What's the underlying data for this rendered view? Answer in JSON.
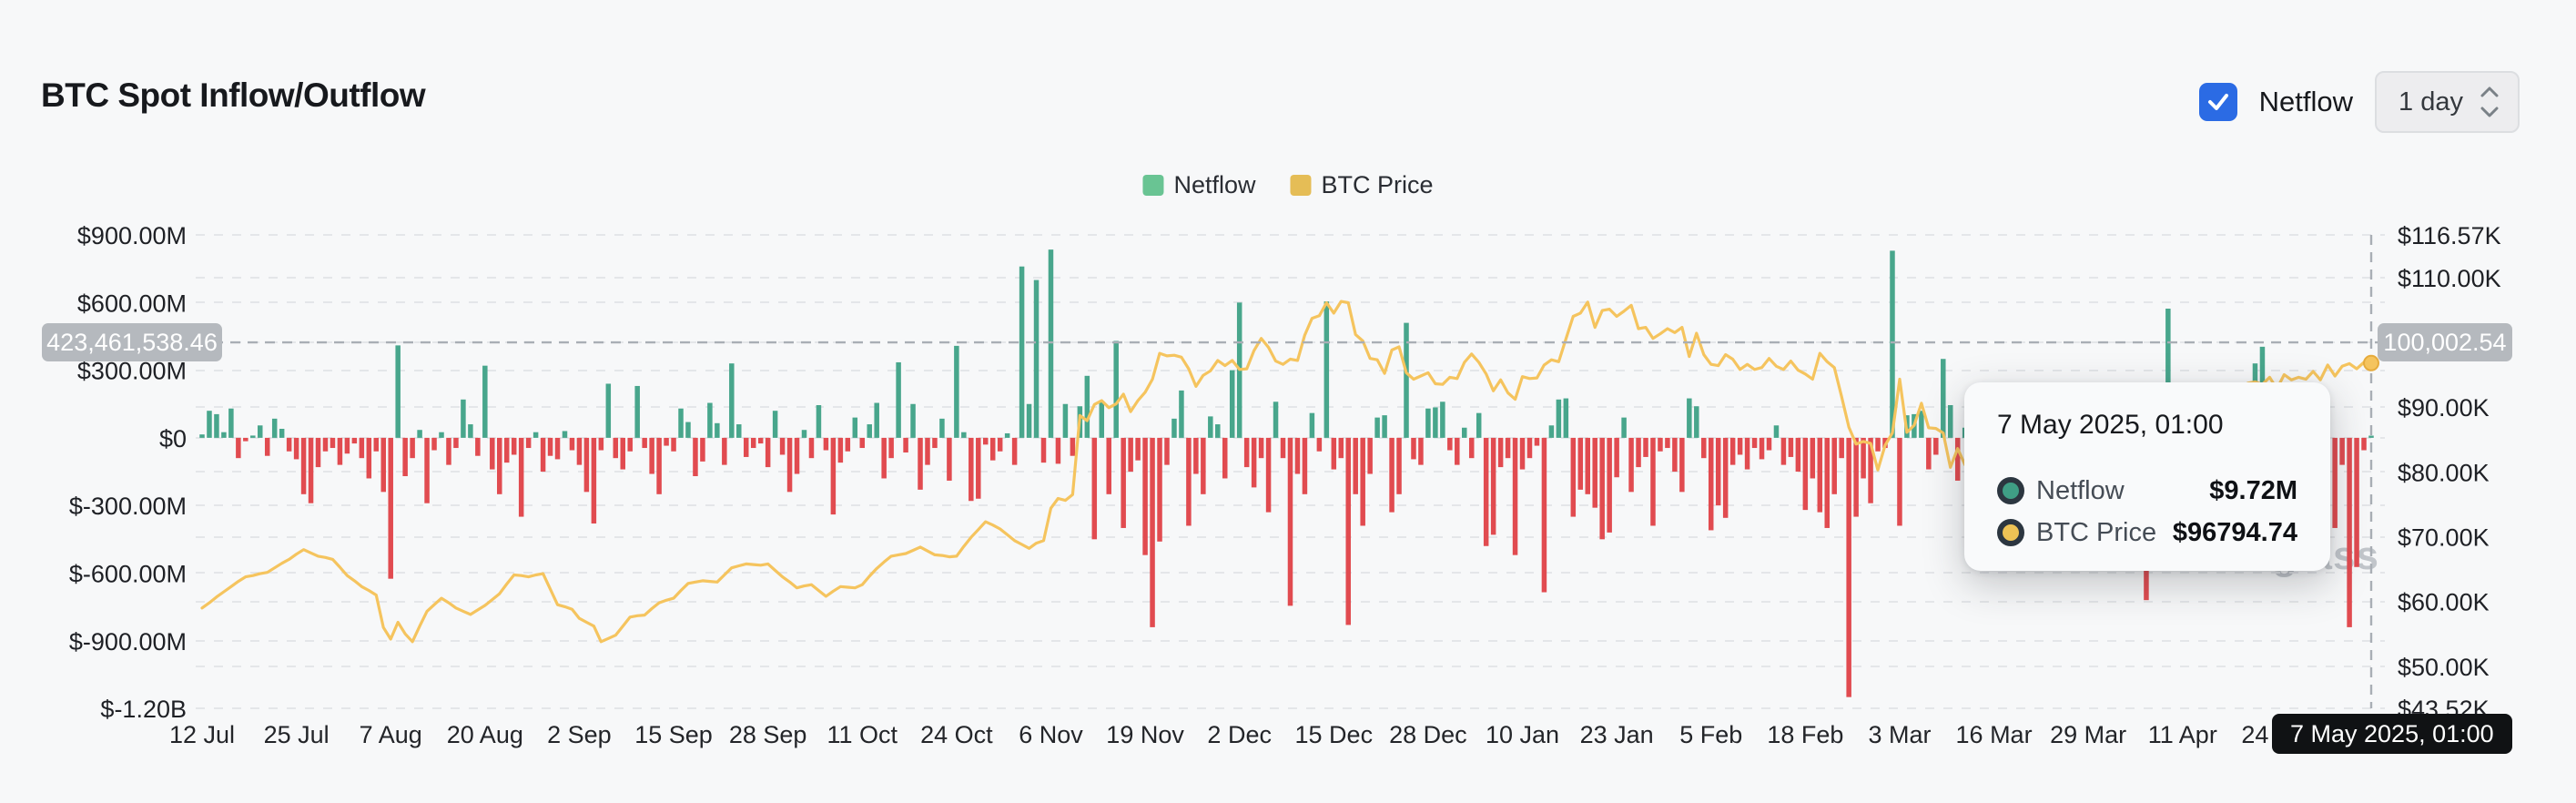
{
  "header": {
    "title": "BTC Spot Inflow/Outflow",
    "netflow_toggle_label": "Netflow",
    "interval_selector": "1 day"
  },
  "legend": [
    {
      "label": "Netflow",
      "color": "#69c493"
    },
    {
      "label": "BTC Price",
      "color": "#e5bd56"
    }
  ],
  "crosshair": {
    "left_value_badge": "423,461,538.46",
    "right_value_badge": "100,002.54",
    "date_badge": "7 May 2025, 01:00"
  },
  "tooltip": {
    "title": "7 May 2025, 01:00",
    "rows": [
      {
        "label": "Netflow",
        "value": "$9.72M",
        "color": "#3f9e85"
      },
      {
        "label": "BTC Price",
        "value": "$96794.74",
        "color": "#edc255"
      }
    ]
  },
  "watermark": "coinglass",
  "chart_data": {
    "type": "bar+line",
    "title": "BTC Spot Inflow/Outflow",
    "x_tick_labels": [
      "12 Jul",
      "25 Jul",
      "7 Aug",
      "20 Aug",
      "2 Sep",
      "15 Sep",
      "28 Sep",
      "11 Oct",
      "24 Oct",
      "6 Nov",
      "19 Nov",
      "2 Dec",
      "15 Dec",
      "28 Dec",
      "10 Jan",
      "23 Jan",
      "5 Feb",
      "18 Feb",
      "3 Mar",
      "16 Mar",
      "29 Mar",
      "11 Apr",
      "24 Apr"
    ],
    "x_tick_indices": [
      0,
      13,
      26,
      39,
      52,
      65,
      78,
      91,
      104,
      117,
      130,
      143,
      156,
      169,
      182,
      195,
      208,
      221,
      234,
      247,
      260,
      273,
      286
    ],
    "left_axis": {
      "tick_labels": [
        "$900.00M",
        "$600.00M",
        "$300.00M",
        "$0",
        "$-300.00M",
        "$-600.00M",
        "$-900.00M",
        "$-1.20B"
      ],
      "tick_values": [
        900,
        600,
        300,
        0,
        -300,
        -600,
        -900,
        -1200
      ],
      "range": [
        -1200,
        900
      ],
      "unit": "USD millions"
    },
    "right_axis": {
      "tick_labels": [
        "$116.57K",
        "$110.00K",
        "$100.00K",
        "$90.00K",
        "$80.00K",
        "$70.00K",
        "$60.00K",
        "$50.00K",
        "$43.52K"
      ],
      "tick_values": [
        116.57,
        110,
        100,
        90,
        80,
        70,
        60,
        50,
        43.52
      ],
      "range": [
        43.52,
        116.57
      ],
      "unit": "USD thousands"
    },
    "crosshair": {
      "hover_index": 299,
      "netflow_axis_value_m": 423.461538,
      "price_axis_value_k": 100.00254,
      "hover_netflow": "$9.72M",
      "hover_price": "$96794.74"
    },
    "grid": "dashed-horizontal",
    "legend_position": "top-center",
    "series": [
      {
        "name": "Netflow",
        "type": "bar",
        "axis": "left",
        "unit": "USD millions",
        "color_positive": "#48a68c",
        "color_negative": "#e14b50",
        "values": [
          15,
          120,
          105,
          25,
          130,
          -90,
          -15,
          10,
          55,
          -80,
          85,
          40,
          -60,
          -95,
          -250,
          -290,
          -130,
          -60,
          -45,
          -120,
          -70,
          -25,
          -90,
          -180,
          -60,
          -240,
          -625,
          410,
          -170,
          -90,
          35,
          -290,
          -55,
          25,
          -120,
          -45,
          170,
          60,
          -80,
          320,
          -140,
          -250,
          -110,
          -75,
          -350,
          -45,
          25,
          -150,
          -80,
          -95,
          30,
          -55,
          -120,
          -240,
          -380,
          -55,
          240,
          -90,
          -140,
          -60,
          230,
          -45,
          -160,
          -250,
          -35,
          -60,
          130,
          70,
          -170,
          -105,
          155,
          65,
          -120,
          330,
          60,
          -85,
          -45,
          -25,
          -130,
          120,
          -75,
          -240,
          -160,
          35,
          -90,
          145,
          -55,
          -340,
          -110,
          -60,
          90,
          -45,
          60,
          155,
          -180,
          -90,
          335,
          -65,
          150,
          -230,
          -120,
          -45,
          85,
          -190,
          408,
          25,
          -280,
          -270,
          -30,
          -100,
          -60,
          20,
          -120,
          760,
          150,
          700,
          -110,
          835,
          -115,
          150,
          -80,
          140,
          275,
          -450,
          160,
          -250,
          430,
          -400,
          -150,
          -100,
          -520,
          -840,
          -460,
          -120,
          85,
          210,
          -390,
          -160,
          -250,
          95,
          60,
          -180,
          300,
          600,
          -130,
          -220,
          -90,
          -330,
          160,
          -90,
          -745,
          -160,
          -250,
          110,
          -60,
          605,
          -140,
          -90,
          -830,
          -250,
          -390,
          -160,
          90,
          100,
          -330,
          -250,
          510,
          -95,
          -120,
          130,
          135,
          160,
          -55,
          -120,
          45,
          -90,
          110,
          -480,
          -430,
          -130,
          -90,
          -520,
          -140,
          -90,
          -35,
          -685,
          55,
          170,
          175,
          -350,
          -230,
          -250,
          -310,
          -450,
          -420,
          -175,
          90,
          -240,
          -130,
          -85,
          -390,
          -60,
          -45,
          -150,
          -240,
          175,
          140,
          -90,
          -410,
          -300,
          -355,
          -120,
          -75,
          -140,
          -45,
          -95,
          -55,
          55,
          -120,
          -85,
          -150,
          -320,
          -180,
          -330,
          -400,
          -250,
          -90,
          -1150,
          -350,
          -180,
          -290,
          -60,
          -45,
          830,
          -390,
          100,
          105,
          120,
          -140,
          -75,
          350,
          145,
          -190,
          45,
          -75,
          -35,
          -90,
          60,
          -120,
          -45,
          85,
          -150,
          -60,
          30,
          -95,
          120,
          -40,
          -80,
          25,
          -55,
          -90,
          -45,
          -150,
          -75,
          -280,
          -120,
          -60,
          -90,
          -720,
          -150,
          -45,
          573,
          -85,
          -55,
          35,
          -120,
          -75,
          150,
          -45,
          -90,
          60,
          -30,
          85,
          330,
          404,
          -60,
          -120,
          -180,
          -90,
          -45,
          -160,
          -90,
          -240,
          8,
          -400,
          -120,
          -840,
          -573,
          -55,
          9.72
        ]
      },
      {
        "name": "BTC Price",
        "type": "line",
        "axis": "right",
        "unit": "USD thousands",
        "color": "#f5c45e",
        "values": [
          59.0,
          59.8,
          60.7,
          61.5,
          62.3,
          63.1,
          63.8,
          64.0,
          64.3,
          64.5,
          65.2,
          65.9,
          66.5,
          67.3,
          68.0,
          67.5,
          67.0,
          66.8,
          66.5,
          65.3,
          64.0,
          63.2,
          62.3,
          61.7,
          61.0,
          56.0,
          54.2,
          56.8,
          55.0,
          53.8,
          56.2,
          58.5,
          59.5,
          60.5,
          59.8,
          59.0,
          58.5,
          58.0,
          58.7,
          59.4,
          60.3,
          61.2,
          62.7,
          64.1,
          64.0,
          63.8,
          64.1,
          64.3,
          61.9,
          59.5,
          59.2,
          58.8,
          57.4,
          56.8,
          56.2,
          53.8,
          54.3,
          54.8,
          56.2,
          57.6,
          57.8,
          57.9,
          58.9,
          59.8,
          60.2,
          60.5,
          61.7,
          62.8,
          63.0,
          63.2,
          63.1,
          63.0,
          64.1,
          65.2,
          65.5,
          65.8,
          65.7,
          65.6,
          65.8,
          64.8,
          63.8,
          63.0,
          62.1,
          62.4,
          62.6,
          61.7,
          60.8,
          61.6,
          62.3,
          62.2,
          62.1,
          62.6,
          63.9,
          65.1,
          66.1,
          67.0,
          67.2,
          67.4,
          67.9,
          68.4,
          67.8,
          67.2,
          67.1,
          66.9,
          67.0,
          68.5,
          69.9,
          71.1,
          72.3,
          71.8,
          71.2,
          70.3,
          69.4,
          68.8,
          68.2,
          69.0,
          69.4,
          74.4,
          75.9,
          75.6,
          76.5,
          88.7,
          87.9,
          90.4,
          91.0,
          89.9,
          90.5,
          92.0,
          89.3,
          91.0,
          92.3,
          94.3,
          98.3,
          97.9,
          98.0,
          97.7,
          95.9,
          93.2,
          94.9,
          95.6,
          97.2,
          96.4,
          97.2,
          95.8,
          95.9,
          98.7,
          100.6,
          99.2,
          97.1,
          96.6,
          97.4,
          97.2,
          101.1,
          103.7,
          104.1,
          106.1,
          104.5,
          106.3,
          106.1,
          101.2,
          100.2,
          97.5,
          97.3,
          95.2,
          98.8,
          99.3,
          95.3,
          94.3,
          94.8,
          95.3,
          93.6,
          93.5,
          94.6,
          94.4,
          96.9,
          98.2,
          96.9,
          95.1,
          92.5,
          94.2,
          92.2,
          91.2,
          94.7,
          94.4,
          94.5,
          96.5,
          97.3,
          97.0,
          100.5,
          104.0,
          104.5,
          106.2,
          102.3,
          104.9,
          105.1,
          104.0,
          104.8,
          105.7,
          102.1,
          102.3,
          100.6,
          101.3,
          102.1,
          101.5,
          102.3,
          97.8,
          101.4,
          98.1,
          96.6,
          96.4,
          98.1,
          97.4,
          95.8,
          96.6,
          95.8,
          96.1,
          97.5,
          96.3,
          95.8,
          97.1,
          95.7,
          95.1,
          94.3,
          98.3,
          97.0,
          96.1,
          91.6,
          86.9,
          84.3,
          84.7,
          84.4,
          80.3,
          84.1,
          86.0,
          94.3,
          86.1,
          87.2,
          90.6,
          86.8,
          86.7,
          86.0,
          80.7,
          83.6,
          81.1,
          83.9,
          84.0,
          84.4,
          82.6,
          84.0,
          86.8,
          84.2,
          84.0,
          87.5,
          87.2,
          86.7,
          87.1,
          85.8,
          87.3,
          86.9,
          87.5,
          82.4,
          83.7,
          82.5,
          82.4,
          83.9,
          83.5,
          76.3,
          79.2,
          76.3,
          79.6,
          82.6,
          79.9,
          82.4,
          79.6,
          83.7,
          84.0,
          84.7,
          84.5,
          84.0,
          85.2,
          87.3,
          92.9,
          93.7,
          93.9,
          93.5,
          94.6,
          92.8,
          95.0,
          94.2,
          94.6,
          94.3,
          95.5,
          94.2,
          96.5,
          94.8,
          96.3,
          96.7,
          95.9,
          96.9,
          96.79
        ]
      }
    ]
  }
}
